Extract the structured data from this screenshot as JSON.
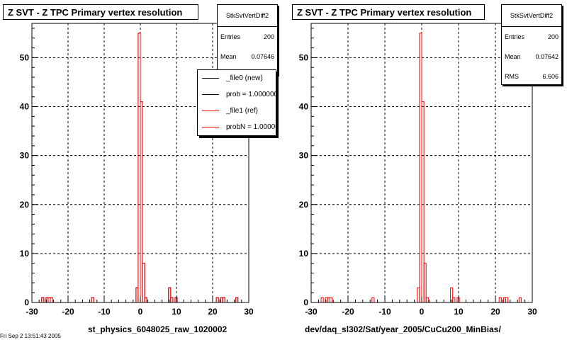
{
  "footer_text": "Fri Sep  2 13:51:43 2005",
  "panels": [
    {
      "title": "Z SVT - Z TPC Primary vertex resolution",
      "stats": {
        "name": "StkSvtVertDiff2",
        "rows": [
          {
            "label": "Entries",
            "value": "200"
          },
          {
            "label": "Mean",
            "value": "0.07646"
          }
        ]
      },
      "legend": [
        {
          "label": "_file0 (new)",
          "color": "#000000"
        },
        {
          "label": "prob = 1.000000",
          "color": "#000000"
        },
        {
          "label": "_file1 (ref)",
          "color": "#ff0000"
        },
        {
          "label": "probN = 1.000000",
          "color": "#ff0000"
        }
      ],
      "caption": "st_physics_6048025_raw_1020002"
    },
    {
      "title": "Z SVT - Z TPC Primary vertex resolution",
      "stats": {
        "name": "StkSvtVertDiff2",
        "rows": [
          {
            "label": "Entries",
            "value": "200"
          },
          {
            "label": "Mean",
            "value": "0.07642"
          },
          {
            "label": "RMS",
            "value": "6.606"
          }
        ]
      },
      "legend": [],
      "caption": "dev/daq_sl302/Sat/year_2005/CuCu200_MinBias/"
    }
  ],
  "chart_data": [
    {
      "type": "bar",
      "title": "Z SVT - Z TPC Primary vertex resolution",
      "xlabel": "st_physics_6048025_raw_1020002",
      "ylabel": "",
      "xlim": [
        -30,
        30
      ],
      "ylim": [
        0,
        57
      ],
      "bin_width": 0.6,
      "grid": true,
      "x_ticks": [
        "-30",
        "-20",
        "-10",
        "0",
        "10",
        "20",
        "30"
      ],
      "y_ticks": [
        "0",
        "10",
        "20",
        "30",
        "40",
        "50"
      ],
      "bins_x": [
        -27.3,
        -26.1,
        -25.5,
        -24.9,
        -13.5,
        -1.2,
        -0.6,
        0.0,
        0.6,
        1.2,
        7.8,
        8.4,
        9.6,
        21.0,
        22.2,
        22.8,
        26.4
      ],
      "series": [
        {
          "name": "_file0 (new)",
          "color": "#000000",
          "values": [
            1,
            1,
            1,
            1,
            1,
            3,
            55,
            41,
            8,
            1,
            3,
            1,
            1,
            1,
            1,
            1,
            1
          ]
        },
        {
          "name": "_file1 (ref)",
          "color": "#ff0000",
          "values": [
            1,
            1,
            1,
            1,
            1,
            3,
            55,
            41,
            8,
            1,
            3,
            1,
            1,
            1,
            1,
            1,
            1
          ]
        }
      ]
    },
    {
      "type": "bar",
      "title": "Z SVT - Z TPC Primary vertex resolution",
      "xlabel": "dev/daq_sl302/Sat/year_2005/CuCu200_MinBias/",
      "ylabel": "",
      "xlim": [
        -30,
        30
      ],
      "ylim": [
        0,
        57
      ],
      "bin_width": 0.6,
      "grid": true,
      "x_ticks": [
        "-30",
        "-20",
        "-10",
        "0",
        "10",
        "20",
        "30"
      ],
      "y_ticks": [
        "0",
        "10",
        "20",
        "30",
        "40",
        "50"
      ],
      "bins_x": [
        -27.3,
        -26.1,
        -25.5,
        -24.9,
        -13.5,
        -1.2,
        -0.6,
        0.0,
        0.6,
        1.2,
        7.8,
        8.4,
        9.6,
        21.0,
        22.2,
        22.8,
        26.4
      ],
      "series": [
        {
          "name": "",
          "color": "#ff0000",
          "values": [
            1,
            1,
            1,
            1,
            1,
            3,
            55,
            41,
            8,
            1,
            3,
            1,
            1,
            1,
            1,
            1,
            1
          ]
        }
      ]
    }
  ]
}
